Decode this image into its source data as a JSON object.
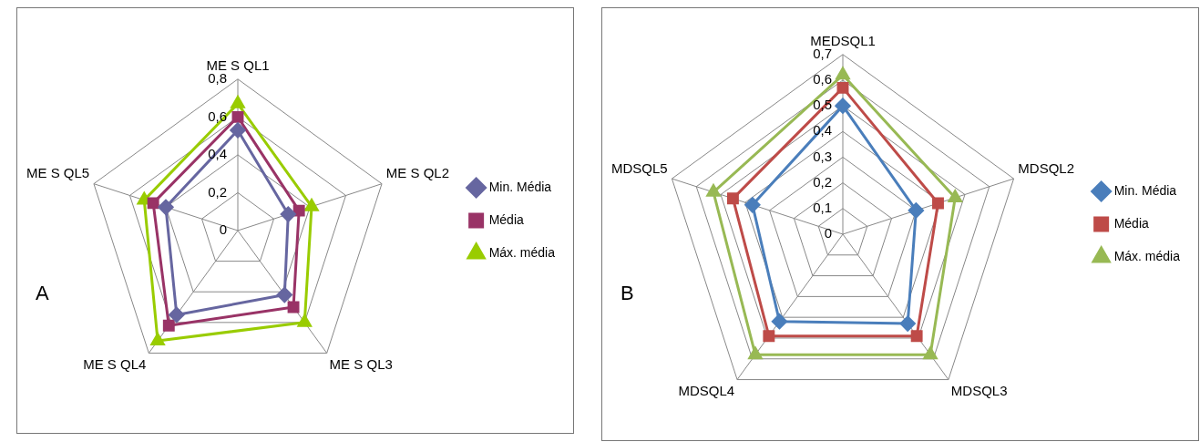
{
  "chart_data": [
    {
      "type": "radar",
      "categories": [
        "ME S QL1",
        "ME S QL2",
        "ME S QL3",
        "ME S QL4",
        "ME S QL5"
      ],
      "ylim": [
        0,
        0.8
      ],
      "yticks": [
        {
          "value": 0,
          "label": "0"
        },
        {
          "value": 0.2,
          "label": "0,2"
        },
        {
          "value": 0.4,
          "label": "0,4"
        },
        {
          "value": 0.6,
          "label": "0,6"
        },
        {
          "value": 0.8,
          "label": "0,8"
        }
      ],
      "grid": true,
      "legend": "right",
      "annotations": [
        "A"
      ],
      "series": [
        {
          "name": "Min. Média",
          "color": "#6666a0",
          "marker": "diamond",
          "values": [
            0.53,
            0.28,
            0.42,
            0.55,
            0.4
          ]
        },
        {
          "name": "Média",
          "color": "#993366",
          "marker": "square",
          "values": [
            0.6,
            0.34,
            0.5,
            0.62,
            0.47
          ]
        },
        {
          "name": "Máx. média",
          "color": "#99cc00",
          "marker": "triangle",
          "values": [
            0.67,
            0.41,
            0.6,
            0.72,
            0.52
          ]
        }
      ]
    },
    {
      "type": "radar",
      "categories": [
        "MEDSQL1",
        "MDSQL2",
        "MDSQL3",
        "MDSQL4",
        "MDSQL5"
      ],
      "ylim": [
        0,
        0.7
      ],
      "yticks": [
        {
          "value": 0,
          "label": "0"
        },
        {
          "value": 0.1,
          "label": "0,1"
        },
        {
          "value": 0.2,
          "label": "0,2"
        },
        {
          "value": 0.3,
          "label": "0,3"
        },
        {
          "value": 0.4,
          "label": "0,4"
        },
        {
          "value": 0.5,
          "label": "0,5"
        },
        {
          "value": 0.6,
          "label": "0,6"
        },
        {
          "value": 0.7,
          "label": "0,7"
        }
      ],
      "grid": true,
      "legend": "right",
      "annotations": [
        "B"
      ],
      "series": [
        {
          "name": "Min. Média",
          "color": "#4a7ebb",
          "marker": "diamond",
          "values": [
            0.5,
            0.3,
            0.43,
            0.42,
            0.37
          ]
        },
        {
          "name": "Média",
          "color": "#be4b48",
          "marker": "square",
          "values": [
            0.57,
            0.39,
            0.49,
            0.49,
            0.45
          ]
        },
        {
          "name": "Máx. média",
          "color": "#98b954",
          "marker": "triangle",
          "values": [
            0.62,
            0.46,
            0.58,
            0.58,
            0.53
          ]
        }
      ]
    }
  ]
}
